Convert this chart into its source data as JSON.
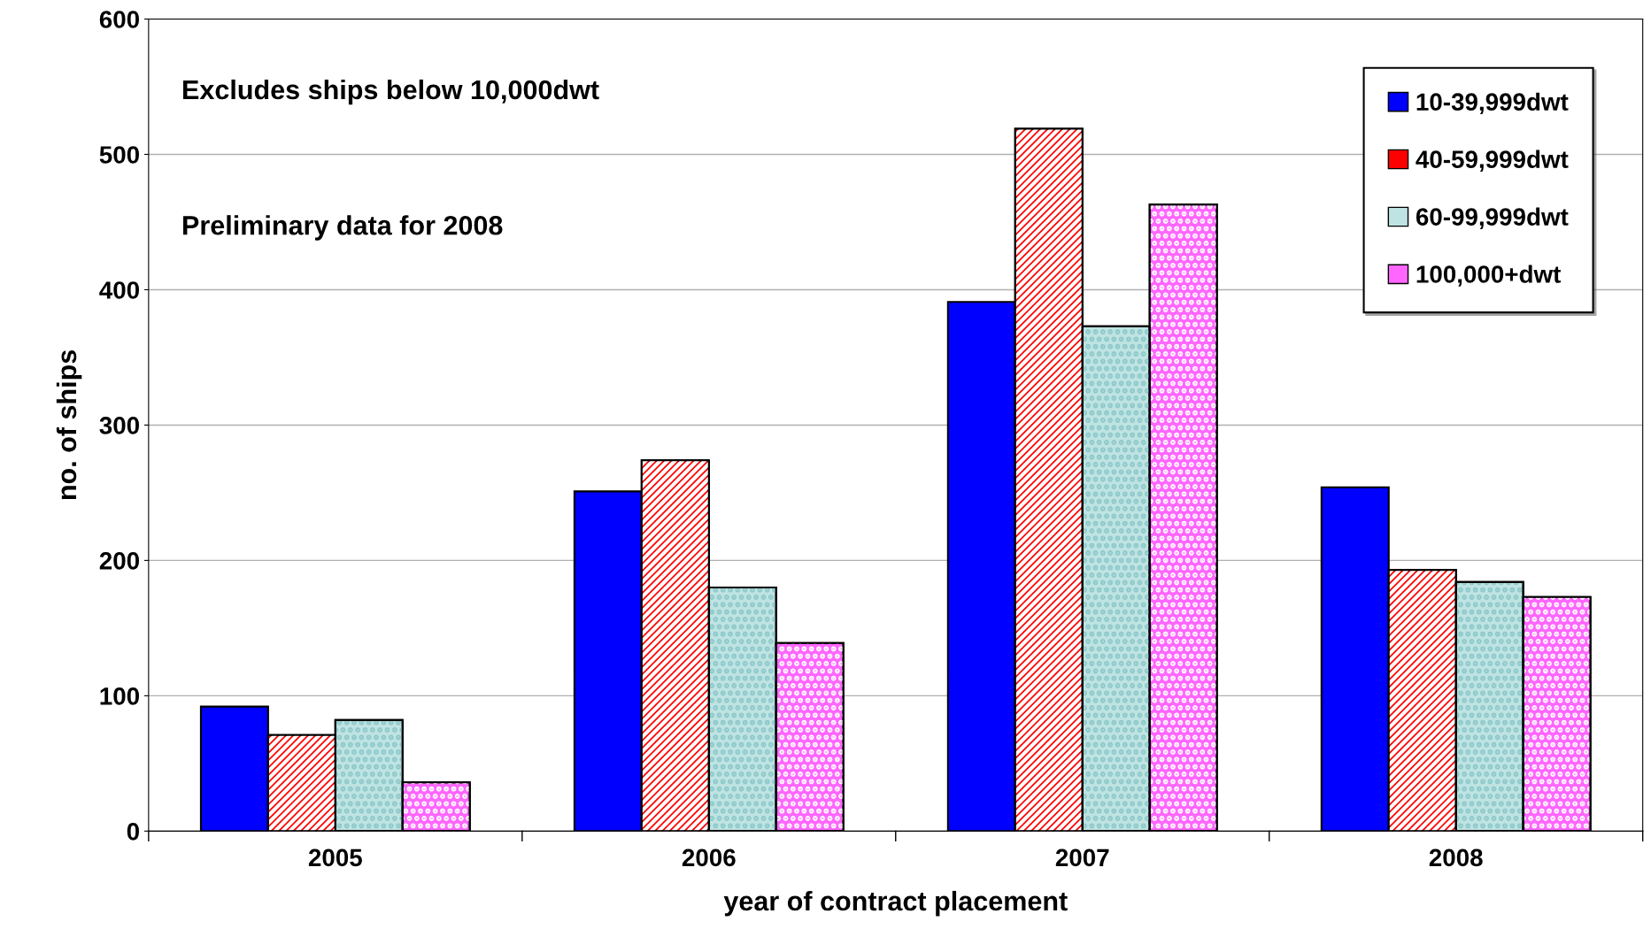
{
  "chart_data": {
    "type": "bar",
    "xlabel": "year of contract placement",
    "ylabel": "no. of ships",
    "categories": [
      "2005",
      "2006",
      "2007",
      "2008"
    ],
    "series": [
      {
        "name": "10-39,999dwt",
        "color": "#0000ff",
        "values": [
          92,
          251,
          391,
          254
        ]
      },
      {
        "name": "40-59,999dwt",
        "color": "#ff0000",
        "values": [
          71,
          274,
          519,
          193
        ]
      },
      {
        "name": "60-99,999dwt",
        "color": "#bfe3e3",
        "values": [
          82,
          180,
          373,
          184
        ]
      },
      {
        "name": "100,000+dwt",
        "color": "#ff66ff",
        "values": [
          36,
          139,
          463,
          173
        ]
      }
    ],
    "ylim": [
      0,
      600
    ],
    "yticks": [
      0,
      100,
      200,
      300,
      400,
      500,
      600
    ],
    "grid": "y",
    "legend": "top right",
    "annotations": [
      "Excludes ships below 10,000dwt",
      "Preliminary data for 2008"
    ]
  }
}
